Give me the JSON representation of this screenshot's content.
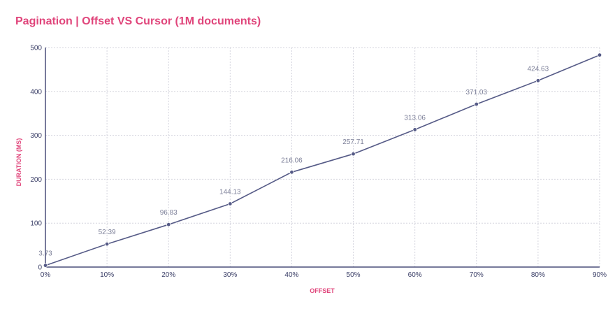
{
  "chart_data": {
    "type": "line",
    "title": "Pagination | Offset VS Cursor (1M documents)",
    "xlabel": "OFFSET",
    "ylabel": "DURATION (MS)",
    "categories": [
      "0%",
      "10%",
      "20%",
      "30%",
      "40%",
      "50%",
      "60%",
      "70%",
      "80%",
      "90%"
    ],
    "series": [
      {
        "values": [
          3.73,
          52.39,
          96.83,
          144.13,
          216.06,
          257.71,
          313.06,
          371.03,
          424.63,
          483
        ],
        "labels": [
          "3.73",
          "52.39",
          "96.83",
          "144.13",
          "216.06",
          "257.71",
          "313.06",
          "371.03",
          "424.63",
          ""
        ]
      }
    ],
    "ylim": [
      0,
      500
    ],
    "yticks": [
      "0",
      "100",
      "200",
      "300",
      "400",
      "500"
    ],
    "grid": true,
    "colors": {
      "title": "#e0457b",
      "line": "#565b87",
      "axis": "#4a4f7a",
      "grid": "#d5d5de"
    }
  }
}
